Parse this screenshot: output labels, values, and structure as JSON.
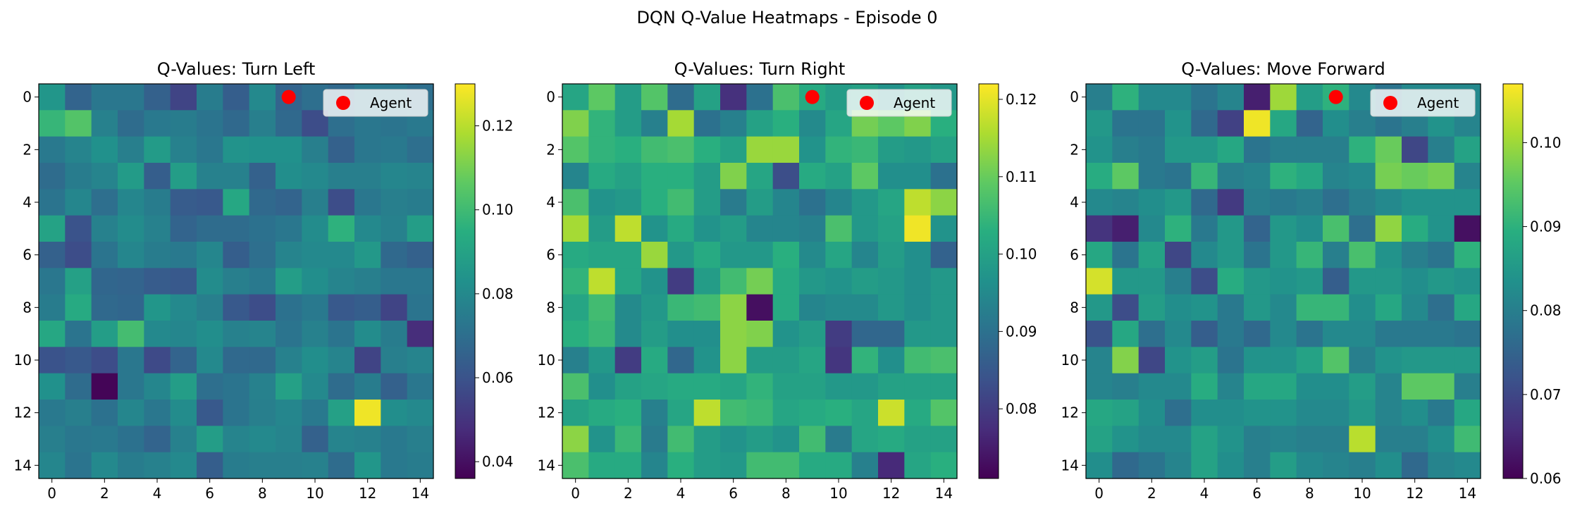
{
  "figure": {
    "suptitle": "DQN Q-Value Heatmaps - Episode 0"
  },
  "chart_data": [
    {
      "type": "heatmap",
      "title": "Q-Values: Turn Left",
      "grid_size": 15,
      "x_ticks": [
        0,
        2,
        4,
        6,
        8,
        10,
        12,
        14
      ],
      "y_ticks": [
        0,
        2,
        4,
        6,
        8,
        10,
        12,
        14
      ],
      "colormap": "viridis",
      "vmin": 0.036,
      "vmax": 0.13,
      "colorbar_ticks": [
        0.04,
        0.06,
        0.08,
        0.1,
        0.12
      ],
      "colorbar_tick_labels": [
        "0.04",
        "0.06",
        "0.08",
        "0.10",
        "0.12"
      ],
      "agent": {
        "x": 9,
        "y": 0,
        "color": "#ff0000",
        "label": "Agent"
      },
      "legend_position": "top-right",
      "values": [
        [
          0.085,
          0.066,
          0.073,
          0.073,
          0.065,
          0.055,
          0.075,
          0.064,
          0.08,
          0.066,
          0.07,
          0.068,
          0.074,
          0.073,
          0.07
        ],
        [
          0.098,
          0.104,
          0.077,
          0.069,
          0.074,
          0.075,
          0.072,
          0.068,
          0.076,
          0.068,
          0.058,
          0.07,
          0.073,
          0.072,
          0.074
        ],
        [
          0.074,
          0.078,
          0.083,
          0.076,
          0.087,
          0.077,
          0.073,
          0.084,
          0.083,
          0.083,
          0.076,
          0.065,
          0.073,
          0.074,
          0.07
        ],
        [
          0.069,
          0.075,
          0.078,
          0.087,
          0.064,
          0.088,
          0.077,
          0.077,
          0.065,
          0.082,
          0.08,
          0.076,
          0.076,
          0.079,
          0.078
        ],
        [
          0.072,
          0.079,
          0.07,
          0.079,
          0.075,
          0.063,
          0.062,
          0.092,
          0.068,
          0.066,
          0.076,
          0.058,
          0.073,
          0.076,
          0.075
        ],
        [
          0.09,
          0.06,
          0.077,
          0.081,
          0.077,
          0.066,
          0.069,
          0.069,
          0.071,
          0.073,
          0.081,
          0.096,
          0.08,
          0.077,
          0.088
        ],
        [
          0.065,
          0.058,
          0.072,
          0.079,
          0.075,
          0.074,
          0.079,
          0.064,
          0.07,
          0.078,
          0.08,
          0.08,
          0.086,
          0.068,
          0.065
        ],
        [
          0.073,
          0.089,
          0.067,
          0.066,
          0.063,
          0.062,
          0.081,
          0.076,
          0.074,
          0.088,
          0.082,
          0.078,
          0.076,
          0.073,
          0.073
        ],
        [
          0.075,
          0.093,
          0.068,
          0.067,
          0.085,
          0.08,
          0.076,
          0.062,
          0.058,
          0.071,
          0.074,
          0.062,
          0.064,
          0.055,
          0.072
        ],
        [
          0.092,
          0.072,
          0.088,
          0.101,
          0.08,
          0.079,
          0.082,
          0.077,
          0.078,
          0.072,
          0.077,
          0.072,
          0.081,
          0.075,
          0.048
        ],
        [
          0.06,
          0.062,
          0.058,
          0.073,
          0.057,
          0.066,
          0.08,
          0.068,
          0.068,
          0.077,
          0.082,
          0.078,
          0.055,
          0.076,
          0.078
        ],
        [
          0.083,
          0.069,
          0.037,
          0.073,
          0.079,
          0.088,
          0.07,
          0.072,
          0.077,
          0.089,
          0.08,
          0.069,
          0.075,
          0.065,
          0.073
        ],
        [
          0.074,
          0.076,
          0.071,
          0.079,
          0.073,
          0.081,
          0.062,
          0.072,
          0.076,
          0.079,
          0.074,
          0.089,
          0.128,
          0.082,
          0.08
        ],
        [
          0.076,
          0.073,
          0.074,
          0.071,
          0.066,
          0.077,
          0.088,
          0.078,
          0.08,
          0.078,
          0.065,
          0.078,
          0.077,
          0.074,
          0.076
        ],
        [
          0.079,
          0.072,
          0.08,
          0.075,
          0.077,
          0.08,
          0.064,
          0.075,
          0.076,
          0.076,
          0.077,
          0.069,
          0.085,
          0.074,
          0.075
        ]
      ]
    },
    {
      "type": "heatmap",
      "title": "Q-Values: Turn Right",
      "grid_size": 15,
      "x_ticks": [
        0,
        2,
        4,
        6,
        8,
        10,
        12,
        14
      ],
      "y_ticks": [
        0,
        2,
        4,
        6,
        8,
        10,
        12,
        14
      ],
      "colormap": "viridis",
      "vmin": 0.071,
      "vmax": 0.122,
      "colorbar_ticks": [
        0.08,
        0.09,
        0.1,
        0.11,
        0.12
      ],
      "colorbar_tick_labels": [
        "0.08",
        "0.09",
        "0.10",
        "0.11",
        "0.12"
      ],
      "agent": {
        "x": 9,
        "y": 0,
        "color": "#ff0000",
        "label": "Agent"
      },
      "legend_position": "top-right",
      "values": [
        [
          0.101,
          0.109,
          0.099,
          0.108,
          0.089,
          0.1,
          0.078,
          0.09,
          0.107,
          0.102,
          0.099,
          0.1,
          0.097,
          0.1,
          0.098
        ],
        [
          0.112,
          0.104,
          0.099,
          0.093,
          0.115,
          0.09,
          0.093,
          0.1,
          0.103,
          0.095,
          0.101,
          0.111,
          0.109,
          0.112,
          0.103
        ],
        [
          0.108,
          0.104,
          0.103,
          0.106,
          0.107,
          0.103,
          0.1,
          0.114,
          0.114,
          0.097,
          0.104,
          0.105,
          0.099,
          0.098,
          0.1
        ],
        [
          0.094,
          0.102,
          0.1,
          0.103,
          0.103,
          0.099,
          0.112,
          0.101,
          0.083,
          0.102,
          0.1,
          0.109,
          0.096,
          0.096,
          0.09
        ],
        [
          0.107,
          0.097,
          0.098,
          0.103,
          0.106,
          0.099,
          0.092,
          0.099,
          0.094,
          0.09,
          0.094,
          0.098,
          0.101,
          0.117,
          0.113
        ],
        [
          0.115,
          0.099,
          0.117,
          0.097,
          0.102,
          0.097,
          0.099,
          0.094,
          0.094,
          0.093,
          0.107,
          0.098,
          0.1,
          0.121,
          0.097
        ],
        [
          0.102,
          0.101,
          0.101,
          0.114,
          0.098,
          0.102,
          0.098,
          0.098,
          0.103,
          0.095,
          0.101,
          0.094,
          0.099,
          0.096,
          0.087
        ],
        [
          0.104,
          0.117,
          0.101,
          0.097,
          0.08,
          0.099,
          0.106,
          0.111,
          0.102,
          0.098,
          0.097,
          0.099,
          0.098,
          0.096,
          0.098
        ],
        [
          0.101,
          0.106,
          0.095,
          0.098,
          0.105,
          0.106,
          0.113,
          0.073,
          0.102,
          0.094,
          0.095,
          0.095,
          0.098,
          0.096,
          0.098
        ],
        [
          0.103,
          0.105,
          0.095,
          0.099,
          0.096,
          0.096,
          0.113,
          0.112,
          0.097,
          0.099,
          0.08,
          0.088,
          0.088,
          0.098,
          0.098
        ],
        [
          0.093,
          0.098,
          0.08,
          0.102,
          0.088,
          0.097,
          0.113,
          0.099,
          0.099,
          0.101,
          0.079,
          0.104,
          0.096,
          0.106,
          0.107
        ],
        [
          0.107,
          0.096,
          0.1,
          0.101,
          0.102,
          0.102,
          0.101,
          0.104,
          0.1,
          0.1,
          0.098,
          0.098,
          0.1,
          0.1,
          0.1
        ],
        [
          0.1,
          0.102,
          0.103,
          0.093,
          0.101,
          0.117,
          0.106,
          0.105,
          0.101,
          0.102,
          0.103,
          0.101,
          0.118,
          0.102,
          0.108
        ],
        [
          0.113,
          0.097,
          0.105,
          0.092,
          0.106,
          0.099,
          0.097,
          0.099,
          0.097,
          0.106,
          0.092,
          0.101,
          0.102,
          0.1,
          0.1
        ],
        [
          0.107,
          0.102,
          0.102,
          0.094,
          0.103,
          0.099,
          0.098,
          0.106,
          0.106,
          0.102,
          0.102,
          0.093,
          0.077,
          0.101,
          0.103
        ]
      ]
    },
    {
      "type": "heatmap",
      "title": "Q-Values: Move Forward",
      "grid_size": 15,
      "x_ticks": [
        0,
        2,
        4,
        6,
        8,
        10,
        12,
        14
      ],
      "y_ticks": [
        0,
        2,
        4,
        6,
        8,
        10,
        12,
        14
      ],
      "colormap": "viridis",
      "vmin": 0.06,
      "vmax": 0.107,
      "colorbar_ticks": [
        0.06,
        0.07,
        0.08,
        0.09,
        0.1
      ],
      "colorbar_tick_labels": [
        "0.06",
        "0.07",
        "0.08",
        "0.09",
        "0.10"
      ],
      "agent": {
        "x": 9,
        "y": 0,
        "color": "#ff0000",
        "label": "Agent"
      },
      "legend_position": "top-right",
      "values": [
        [
          0.08,
          0.09,
          0.082,
          0.082,
          0.078,
          0.081,
          0.064,
          0.1,
          0.086,
          0.09,
          0.082,
          0.078,
          0.082,
          0.082,
          0.082
        ],
        [
          0.085,
          0.078,
          0.078,
          0.084,
          0.076,
          0.069,
          0.106,
          0.088,
          0.075,
          0.083,
          0.08,
          0.078,
          0.08,
          0.084,
          0.081
        ],
        [
          0.084,
          0.08,
          0.079,
          0.085,
          0.085,
          0.088,
          0.078,
          0.08,
          0.08,
          0.08,
          0.09,
          0.096,
          0.07,
          0.08,
          0.087
        ],
        [
          0.089,
          0.095,
          0.079,
          0.078,
          0.091,
          0.08,
          0.081,
          0.09,
          0.088,
          0.081,
          0.082,
          0.097,
          0.096,
          0.097,
          0.081
        ],
        [
          0.082,
          0.081,
          0.083,
          0.085,
          0.076,
          0.068,
          0.08,
          0.079,
          0.08,
          0.077,
          0.08,
          0.082,
          0.084,
          0.084,
          0.084
        ],
        [
          0.067,
          0.064,
          0.082,
          0.09,
          0.079,
          0.085,
          0.075,
          0.085,
          0.083,
          0.093,
          0.077,
          0.099,
          0.089,
          0.084,
          0.062
        ],
        [
          0.088,
          0.078,
          0.087,
          0.07,
          0.082,
          0.085,
          0.078,
          0.085,
          0.091,
          0.08,
          0.093,
          0.084,
          0.08,
          0.078,
          0.09
        ],
        [
          0.104,
          0.085,
          0.085,
          0.08,
          0.071,
          0.089,
          0.085,
          0.084,
          0.085,
          0.074,
          0.085,
          0.085,
          0.083,
          0.085,
          0.084
        ],
        [
          0.085,
          0.071,
          0.086,
          0.083,
          0.084,
          0.079,
          0.085,
          0.082,
          0.091,
          0.091,
          0.083,
          0.088,
          0.082,
          0.077,
          0.088
        ],
        [
          0.072,
          0.088,
          0.077,
          0.082,
          0.074,
          0.079,
          0.076,
          0.082,
          0.078,
          0.082,
          0.082,
          0.079,
          0.079,
          0.079,
          0.078
        ],
        [
          0.081,
          0.098,
          0.07,
          0.084,
          0.086,
          0.078,
          0.084,
          0.084,
          0.087,
          0.094,
          0.08,
          0.084,
          0.085,
          0.085,
          0.085
        ],
        [
          0.081,
          0.08,
          0.082,
          0.082,
          0.089,
          0.081,
          0.088,
          0.088,
          0.083,
          0.083,
          0.086,
          0.081,
          0.095,
          0.095,
          0.08
        ],
        [
          0.088,
          0.087,
          0.083,
          0.077,
          0.083,
          0.083,
          0.084,
          0.084,
          0.082,
          0.082,
          0.085,
          0.081,
          0.083,
          0.079,
          0.088
        ],
        [
          0.087,
          0.084,
          0.082,
          0.082,
          0.087,
          0.084,
          0.08,
          0.081,
          0.08,
          0.08,
          0.102,
          0.08,
          0.08,
          0.083,
          0.092
        ],
        [
          0.083,
          0.076,
          0.078,
          0.081,
          0.087,
          0.083,
          0.08,
          0.086,
          0.082,
          0.081,
          0.08,
          0.083,
          0.076,
          0.081,
          0.082
        ]
      ]
    }
  ]
}
